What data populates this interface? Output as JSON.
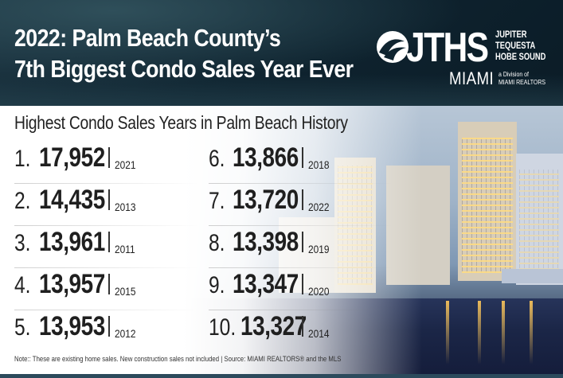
{
  "header": {
    "headline_line1": "2022: Palm Beach County’s",
    "headline_line2": "7th Biggest Condo Sales Year Ever"
  },
  "logo": {
    "brand": "JTHS",
    "places": [
      "JUPITER",
      "TEQUESTA",
      "HOBE SOUND"
    ],
    "city": "MIAMI",
    "division_line1": "a Division of",
    "division_line2": "MIAMI REALTORS"
  },
  "subtitle": "Highest Condo Sales Years in Palm Beach History",
  "rankings": [
    {
      "rank": "1.",
      "value": "17,952",
      "year": "2021"
    },
    {
      "rank": "2.",
      "value": "14,435",
      "year": "2013"
    },
    {
      "rank": "3.",
      "value": "13,961",
      "year": "2011"
    },
    {
      "rank": "4.",
      "value": "13,957",
      "year": "2015"
    },
    {
      "rank": "5.",
      "value": "13,953",
      "year": "2012"
    },
    {
      "rank": "6.",
      "value": "13,866",
      "year": "2018"
    },
    {
      "rank": "7.",
      "value": "13,720",
      "year": "2022"
    },
    {
      "rank": "8.",
      "value": "13,398",
      "year": "2019"
    },
    {
      "rank": "9.",
      "value": "13,347",
      "year": "2020"
    },
    {
      "rank": "10.",
      "value": "13,327",
      "year": "2014"
    }
  ],
  "footnote": "Note:: These are existing home sales. New construction sales not included | Source: MIAMI REALTORS® and the MLS",
  "colors": {
    "header_bg": "#0f2430",
    "text_dark": "#1f1f1f",
    "logo_text": "#ffffff"
  }
}
